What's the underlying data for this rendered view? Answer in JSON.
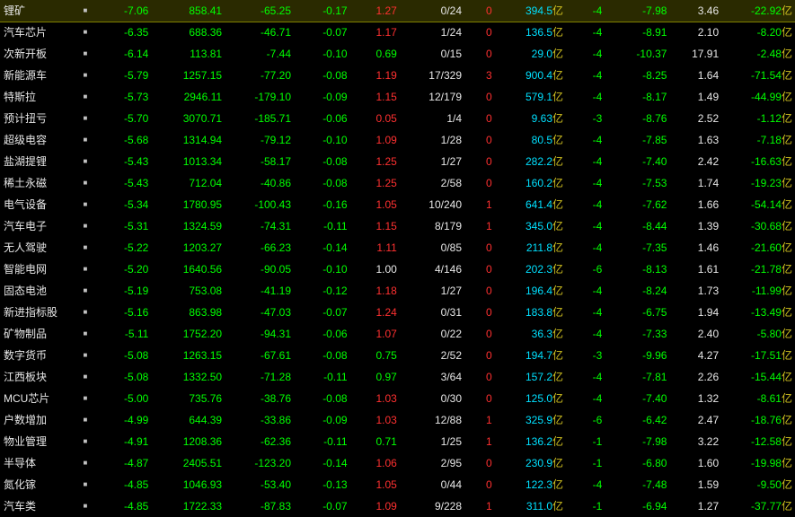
{
  "rows": [
    {
      "name": "锂矿",
      "highlight": true,
      "c1": "-7.06",
      "c2": "858.41",
      "c3": "-65.25",
      "c4": "-0.17",
      "c5": "1.27",
      "c5c": "red",
      "c6": "0/24",
      "c7": "0",
      "c7c": "red",
      "c8": "394.5",
      "c9": "-4",
      "c10": "-7.98",
      "c11": "3.46",
      "c12": "-22.92"
    },
    {
      "name": "汽车芯片",
      "c1": "-6.35",
      "c2": "688.36",
      "c3": "-46.71",
      "c4": "-0.07",
      "c5": "1.17",
      "c5c": "red",
      "c6": "1/24",
      "c7": "0",
      "c7c": "red",
      "c8": "136.5",
      "c9": "-4",
      "c10": "-8.91",
      "c11": "2.10",
      "c12": "-8.20"
    },
    {
      "name": "次新开板",
      "c1": "-6.14",
      "c2": "113.81",
      "c3": "-7.44",
      "c4": "-0.10",
      "c5": "0.69",
      "c5c": "green",
      "c6": "0/15",
      "c7": "0",
      "c7c": "red",
      "c8": "29.0",
      "c9": "-4",
      "c10": "-10.37",
      "c11": "17.91",
      "c12": "-2.48"
    },
    {
      "name": "新能源车",
      "c1": "-5.79",
      "c2": "1257.15",
      "c3": "-77.20",
      "c4": "-0.08",
      "c5": "1.19",
      "c5c": "red",
      "c6": "17/329",
      "c7": "3",
      "c7c": "red",
      "c8": "900.4",
      "c9": "-4",
      "c10": "-8.25",
      "c11": "1.64",
      "c12": "-71.54"
    },
    {
      "name": "特斯拉",
      "c1": "-5.73",
      "c2": "2946.11",
      "c3": "-179.10",
      "c4": "-0.09",
      "c5": "1.15",
      "c5c": "red",
      "c6": "12/179",
      "c7": "0",
      "c7c": "red",
      "c8": "579.1",
      "c9": "-4",
      "c10": "-8.17",
      "c11": "1.49",
      "c12": "-44.99"
    },
    {
      "name": "预计扭亏",
      "c1": "-5.70",
      "c2": "3070.71",
      "c3": "-185.71",
      "c4": "-0.06",
      "c5": "0.05",
      "c5c": "red",
      "c6": "1/4",
      "c7": "0",
      "c7c": "red",
      "c8": "9.63",
      "c9": "-3",
      "c10": "-8.76",
      "c11": "2.52",
      "c12": "-1.12"
    },
    {
      "name": "超级电容",
      "c1": "-5.68",
      "c2": "1314.94",
      "c3": "-79.12",
      "c4": "-0.10",
      "c5": "1.09",
      "c5c": "red",
      "c6": "1/28",
      "c7": "0",
      "c7c": "red",
      "c8": "80.5",
      "c9": "-4",
      "c10": "-7.85",
      "c11": "1.63",
      "c12": "-7.18"
    },
    {
      "name": "盐湖提锂",
      "c1": "-5.43",
      "c2": "1013.34",
      "c3": "-58.17",
      "c4": "-0.08",
      "c5": "1.25",
      "c5c": "red",
      "c6": "1/27",
      "c7": "0",
      "c7c": "red",
      "c8": "282.2",
      "c9": "-4",
      "c10": "-7.40",
      "c11": "2.42",
      "c12": "-16.63"
    },
    {
      "name": "稀土永磁",
      "c1": "-5.43",
      "c2": "712.04",
      "c3": "-40.86",
      "c4": "-0.08",
      "c5": "1.25",
      "c5c": "red",
      "c6": "2/58",
      "c7": "0",
      "c7c": "red",
      "c8": "160.2",
      "c9": "-4",
      "c10": "-7.53",
      "c11": "1.74",
      "c12": "-19.23"
    },
    {
      "name": "电气设备",
      "c1": "-5.34",
      "c2": "1780.95",
      "c3": "-100.43",
      "c4": "-0.16",
      "c5": "1.05",
      "c5c": "red",
      "c6": "10/240",
      "c7": "1",
      "c7c": "red",
      "c8": "641.4",
      "c9": "-4",
      "c10": "-7.62",
      "c11": "1.66",
      "c12": "-54.14"
    },
    {
      "name": "汽车电子",
      "c1": "-5.31",
      "c2": "1324.59",
      "c3": "-74.31",
      "c4": "-0.11",
      "c5": "1.15",
      "c5c": "red",
      "c6": "8/179",
      "c7": "1",
      "c7c": "red",
      "c8": "345.0",
      "c9": "-4",
      "c10": "-8.44",
      "c11": "1.39",
      "c12": "-30.68"
    },
    {
      "name": "无人驾驶",
      "c1": "-5.22",
      "c2": "1203.27",
      "c3": "-66.23",
      "c4": "-0.14",
      "c5": "1.11",
      "c5c": "red",
      "c6": "0/85",
      "c7": "0",
      "c7c": "red",
      "c8": "211.8",
      "c9": "-4",
      "c10": "-7.35",
      "c11": "1.46",
      "c12": "-21.60"
    },
    {
      "name": "智能电网",
      "c1": "-5.20",
      "c2": "1640.56",
      "c3": "-90.05",
      "c4": "-0.10",
      "c5": "1.00",
      "c5c": "white",
      "c6": "4/146",
      "c7": "0",
      "c7c": "red",
      "c8": "202.3",
      "c9": "-6",
      "c10": "-8.13",
      "c11": "1.61",
      "c12": "-21.78"
    },
    {
      "name": "固态电池",
      "c1": "-5.19",
      "c2": "753.08",
      "c3": "-41.19",
      "c4": "-0.12",
      "c5": "1.18",
      "c5c": "red",
      "c6": "1/27",
      "c7": "0",
      "c7c": "red",
      "c8": "196.4",
      "c9": "-4",
      "c10": "-8.24",
      "c11": "1.73",
      "c12": "-11.99"
    },
    {
      "name": "新进指标股",
      "c1": "-5.16",
      "c2": "863.98",
      "c3": "-47.03",
      "c4": "-0.07",
      "c5": "1.24",
      "c5c": "red",
      "c6": "0/31",
      "c7": "0",
      "c7c": "red",
      "c8": "183.8",
      "c9": "-4",
      "c10": "-6.75",
      "c11": "1.94",
      "c12": "-13.49"
    },
    {
      "name": "矿物制品",
      "c1": "-5.11",
      "c2": "1752.20",
      "c3": "-94.31",
      "c4": "-0.06",
      "c5": "1.07",
      "c5c": "red",
      "c6": "0/22",
      "c7": "0",
      "c7c": "red",
      "c8": "36.3",
      "c9": "-4",
      "c10": "-7.33",
      "c11": "2.40",
      "c12": "-5.80"
    },
    {
      "name": "数字货币",
      "c1": "-5.08",
      "c2": "1263.15",
      "c3": "-67.61",
      "c4": "-0.08",
      "c5": "0.75",
      "c5c": "green",
      "c6": "2/52",
      "c7": "0",
      "c7c": "red",
      "c8": "194.7",
      "c9": "-3",
      "c10": "-9.96",
      "c11": "4.27",
      "c12": "-17.51"
    },
    {
      "name": "江西板块",
      "c1": "-5.08",
      "c2": "1332.50",
      "c3": "-71.28",
      "c4": "-0.11",
      "c5": "0.97",
      "c5c": "green",
      "c6": "3/64",
      "c7": "0",
      "c7c": "red",
      "c8": "157.2",
      "c9": "-4",
      "c10": "-7.81",
      "c11": "2.26",
      "c12": "-15.44"
    },
    {
      "name": "MCU芯片",
      "c1": "-5.00",
      "c2": "735.76",
      "c3": "-38.76",
      "c4": "-0.08",
      "c5": "1.03",
      "c5c": "red",
      "c6": "0/30",
      "c7": "0",
      "c7c": "red",
      "c8": "125.0",
      "c9": "-4",
      "c10": "-7.40",
      "c11": "1.32",
      "c12": "-8.61"
    },
    {
      "name": "户数增加",
      "c1": "-4.99",
      "c2": "644.39",
      "c3": "-33.86",
      "c4": "-0.09",
      "c5": "1.03",
      "c5c": "red",
      "c6": "12/88",
      "c7": "1",
      "c7c": "red",
      "c8": "325.9",
      "c9": "-6",
      "c10": "-6.42",
      "c11": "2.47",
      "c12": "-18.76"
    },
    {
      "name": "物业管理",
      "c1": "-4.91",
      "c2": "1208.36",
      "c3": "-62.36",
      "c4": "-0.11",
      "c5": "0.71",
      "c5c": "green",
      "c6": "1/25",
      "c7": "1",
      "c7c": "red",
      "c8": "136.2",
      "c9": "-1",
      "c10": "-7.98",
      "c11": "3.22",
      "c12": "-12.58"
    },
    {
      "name": "半导体",
      "c1": "-4.87",
      "c2": "2405.51",
      "c3": "-123.20",
      "c4": "-0.14",
      "c5": "1.06",
      "c5c": "red",
      "c6": "2/95",
      "c7": "0",
      "c7c": "red",
      "c8": "230.9",
      "c9": "-1",
      "c10": "-6.80",
      "c11": "1.60",
      "c12": "-19.98"
    },
    {
      "name": "氮化镓",
      "c1": "-4.85",
      "c2": "1046.93",
      "c3": "-53.40",
      "c4": "-0.13",
      "c5": "1.05",
      "c5c": "red",
      "c6": "0/44",
      "c7": "0",
      "c7c": "red",
      "c8": "122.3",
      "c9": "-4",
      "c10": "-7.48",
      "c11": "1.59",
      "c12": "-9.50"
    },
    {
      "name": "汽车类",
      "c1": "-4.85",
      "c2": "1722.33",
      "c3": "-87.83",
      "c4": "-0.07",
      "c5": "1.09",
      "c5c": "red",
      "c6": "9/228",
      "c7": "1",
      "c7c": "red",
      "c8": "311.0",
      "c9": "-1",
      "c10": "-6.94",
      "c11": "1.27",
      "c12": "-37.77"
    }
  ],
  "suffix_yi": "亿"
}
